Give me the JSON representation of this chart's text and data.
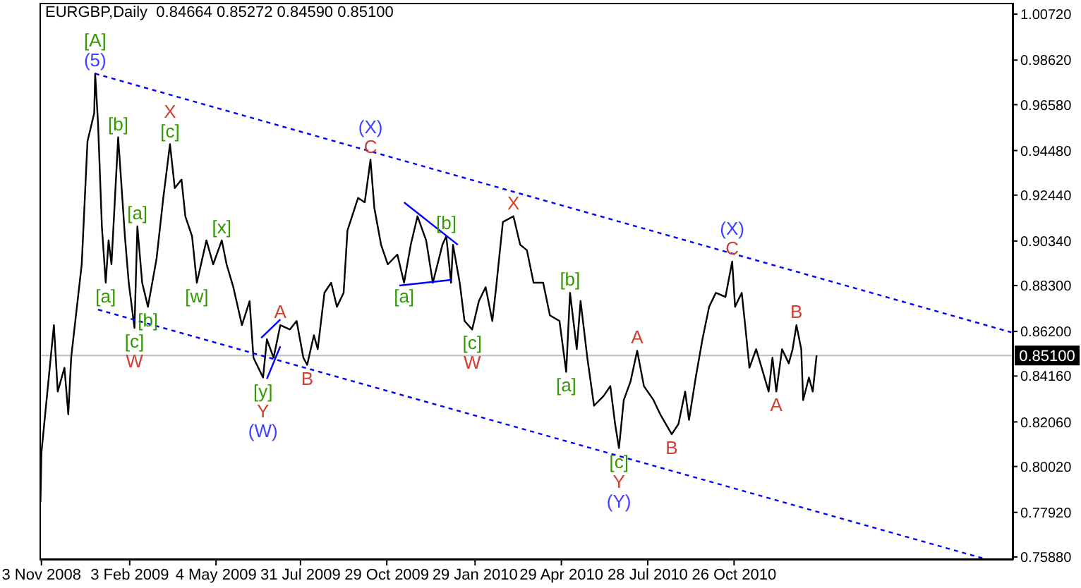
{
  "chart_data": {
    "type": "line",
    "title": "EURGBP,Daily  0.84664 0.85272 0.84590 0.85100",
    "xlim": [
      "2008-11-01",
      "2011-08-13"
    ],
    "xticks": [
      {
        "value": "2008-11-03",
        "label": "3 Nov 2008"
      },
      {
        "value": "2009-02-03",
        "label": "3 Feb 2009"
      },
      {
        "value": "2009-05-04",
        "label": "4 May 2009"
      },
      {
        "value": "2009-07-31",
        "label": "31 Jul 2009"
      },
      {
        "value": "2009-10-29",
        "label": "29 Oct 2009"
      },
      {
        "value": "2010-01-29",
        "label": "29 Jan 2010"
      },
      {
        "value": "2010-04-29",
        "label": "29 Apr 2010"
      },
      {
        "value": "2010-07-28",
        "label": "28 Jul 2010"
      },
      {
        "value": "2010-10-26",
        "label": "26 Oct 2010"
      }
    ],
    "ylim": [
      0.7575,
      1.0124
    ],
    "yticks": [
      {
        "value": 1.0072,
        "label": "1.00720"
      },
      {
        "value": 0.9862,
        "label": "0.98620"
      },
      {
        "value": 0.9658,
        "label": "0.96580"
      },
      {
        "value": 0.9448,
        "label": "0.94480"
      },
      {
        "value": 0.9244,
        "label": "0.92440"
      },
      {
        "value": 0.9034,
        "label": "0.90340"
      },
      {
        "value": 0.883,
        "label": "0.88300"
      },
      {
        "value": 0.862,
        "label": "0.86200"
      },
      {
        "value": 0.8416,
        "label": "0.84160"
      },
      {
        "value": 0.8206,
        "label": "0.82060"
      },
      {
        "value": 0.8002,
        "label": "0.80020"
      },
      {
        "value": 0.7792,
        "label": "0.77920"
      },
      {
        "value": 0.7588,
        "label": "0.75880"
      }
    ],
    "series": [
      {
        "color": "#000000",
        "x": [
          "2008-11-02",
          "2008-11-03",
          "2008-11-16",
          "2008-11-20",
          "2008-11-27",
          "2008-12-01",
          "2008-12-04",
          "2008-12-15",
          "2008-12-21",
          "2008-12-28",
          "2008-12-29",
          "2009-01-01",
          "2009-01-05",
          "2009-01-09",
          "2009-01-12",
          "2009-01-15",
          "2009-01-22",
          "2009-01-25",
          "2009-01-29",
          "2009-02-02",
          "2009-02-08",
          "2009-02-11",
          "2009-02-16",
          "2009-02-22",
          "2009-03-03",
          "2009-03-10",
          "2009-03-17",
          "2009-03-22",
          "2009-03-29",
          "2009-04-02",
          "2009-04-09",
          "2009-04-14",
          "2009-04-24",
          "2009-05-01",
          "2009-05-10",
          "2009-05-15",
          "2009-05-22",
          "2009-05-31",
          "2009-06-08",
          "2009-06-12",
          "2009-06-22",
          "2009-06-26",
          "2009-07-03",
          "2009-07-10",
          "2009-07-20",
          "2009-07-27",
          "2009-08-03",
          "2009-08-07",
          "2009-08-14",
          "2009-08-18",
          "2009-08-25",
          "2009-09-01",
          "2009-09-07",
          "2009-09-14",
          "2009-09-18",
          "2009-09-29",
          "2009-10-06",
          "2009-10-12",
          "2009-10-16",
          "2009-10-23",
          "2009-10-30",
          "2009-11-09",
          "2009-11-16",
          "2009-11-23",
          "2009-11-30",
          "2009-12-09",
          "2009-12-16",
          "2009-12-26",
          "2009-12-30",
          "2010-01-04",
          "2010-01-06",
          "2010-01-13",
          "2010-01-18",
          "2010-01-26",
          "2010-02-02",
          "2010-02-09",
          "2010-02-16",
          "2010-02-20",
          "2010-02-27",
          "2010-03-10",
          "2010-03-17",
          "2010-03-24",
          "2010-03-31",
          "2010-04-10",
          "2010-04-17",
          "2010-04-27",
          "2010-05-04",
          "2010-05-08",
          "2010-05-15",
          "2010-05-19",
          "2010-05-26",
          "2010-06-02",
          "2010-06-12",
          "2010-06-19",
          "2010-06-24",
          "2010-06-28",
          "2010-07-03",
          "2010-07-10",
          "2010-07-17",
          "2010-07-24",
          "2010-08-03",
          "2010-08-10",
          "2010-08-22",
          "2010-08-29",
          "2010-09-05",
          "2010-09-09",
          "2010-09-16",
          "2010-09-23",
          "2010-09-30",
          "2010-10-07",
          "2010-10-17",
          "2010-10-24",
          "2010-10-27",
          "2010-11-03",
          "2010-11-07",
          "2010-11-11",
          "2010-11-18",
          "2010-11-25",
          "2010-12-01",
          "2010-12-05",
          "2010-12-09",
          "2010-12-15",
          "2010-12-22",
          "2010-12-26",
          "2010-12-30",
          "2011-01-04",
          "2011-01-06",
          "2011-01-12",
          "2011-01-16",
          "2011-01-20"
        ],
        "values": [
          0.784,
          0.8066,
          0.8649,
          0.8345,
          0.8454,
          0.8241,
          0.85,
          0.8927,
          0.949,
          0.9619,
          0.98,
          0.9574,
          0.9101,
          0.8843,
          0.9037,
          0.8927,
          0.9509,
          0.9315,
          0.9056,
          0.8843,
          0.8636,
          0.9101,
          0.8843,
          0.8733,
          0.8953,
          0.9231,
          0.9477,
          0.9276,
          0.9315,
          0.9147,
          0.9056,
          0.8843,
          0.9037,
          0.8927,
          0.9037,
          0.8927,
          0.8823,
          0.8649,
          0.8759,
          0.85,
          0.8409,
          0.8584,
          0.85,
          0.8649,
          0.8629,
          0.8668,
          0.85,
          0.8467,
          0.8603,
          0.8539,
          0.8797,
          0.8843,
          0.8733,
          0.8797,
          0.9082,
          0.9231,
          0.9211,
          0.9406,
          0.9186,
          0.9017,
          0.8927,
          0.8972,
          0.8843,
          0.9017,
          0.9147,
          0.9037,
          0.8843,
          0.9017,
          0.9056,
          0.8843,
          0.9017,
          0.8843,
          0.8668,
          0.8629,
          0.8759,
          0.8823,
          0.8668,
          0.8823,
          0.9121,
          0.9147,
          0.9017,
          0.8992,
          0.8843,
          0.8843,
          0.8694,
          0.8668,
          0.8435,
          0.8797,
          0.8539,
          0.8759,
          0.85,
          0.828,
          0.8325,
          0.837,
          0.8196,
          0.8086,
          0.8306,
          0.839,
          0.8532,
          0.837,
          0.8306,
          0.8241,
          0.815,
          0.8196,
          0.8345,
          0.8215,
          0.8409,
          0.8584,
          0.8733,
          0.8797,
          0.8778,
          0.894,
          0.8733,
          0.8797,
          0.8629,
          0.8454,
          0.8539,
          0.8435,
          0.8345,
          0.85,
          0.8345,
          0.8539,
          0.8474,
          0.8539,
          0.8649,
          0.8539,
          0.8306,
          0.8409,
          0.8345,
          0.851
        ]
      },
      {
        "color": "#0000ff",
        "line_style": "dashed",
        "x": [
          "2008-12-29",
          "2011-08-11"
        ],
        "values": [
          0.98,
          0.8616
        ]
      },
      {
        "color": "#0000ff",
        "line_style": "dashed",
        "x": [
          "2009-01-01",
          "2011-07-18"
        ],
        "values": [
          0.872,
          0.7575
        ]
      },
      {
        "color": "#0000ff",
        "line_style": "solid",
        "x": [
          "2009-06-20",
          "2009-07-10"
        ],
        "values": [
          0.859,
          0.8675
        ]
      },
      {
        "color": "#0000ff",
        "line_style": "solid",
        "x": [
          "2009-06-26",
          "2009-07-10"
        ],
        "values": [
          0.8403,
          0.8552
        ]
      },
      {
        "color": "#0000ff",
        "line_style": "solid",
        "x": [
          "2009-11-16",
          "2010-01-11"
        ],
        "values": [
          0.9211,
          0.9017
        ]
      },
      {
        "color": "#0000ff",
        "line_style": "solid",
        "x": [
          "2009-11-11",
          "2010-01-04"
        ],
        "values": [
          0.883,
          0.8856
        ]
      }
    ],
    "ref_lines": [
      {
        "axis": "y",
        "value": 0.851,
        "label": "0.85100",
        "color": "#c0c0c0"
      }
    ],
    "annotations": [
      {
        "text": "[A]",
        "x": "2008-12-29",
        "y": 0.98
      },
      {
        "text": "(5)",
        "x": "2008-12-29",
        "y": 0.98
      },
      {
        "text": "[b]",
        "x": "2009-01-22",
        "y": 0.9509
      },
      {
        "text": "X",
        "x": "2009-03-17",
        "y": 0.9477
      },
      {
        "text": "[c]",
        "x": "2009-03-17",
        "y": 0.9477
      },
      {
        "text": "[a]",
        "x": "2009-02-11",
        "y": 0.9101
      },
      {
        "text": "[x]",
        "x": "2009-05-10",
        "y": 0.9037
      },
      {
        "text": "[a]",
        "x": "2009-01-09",
        "y": 0.8843
      },
      {
        "text": "[b]",
        "x": "2009-02-22",
        "y": 0.8733
      },
      {
        "text": "[w]",
        "x": "2009-04-14",
        "y": 0.8843
      },
      {
        "text": "[c]",
        "x": "2009-02-08",
        "y": 0.8636
      },
      {
        "text": "W",
        "x": "2009-02-08",
        "y": 0.8636
      },
      {
        "text": "A",
        "x": "2009-07-10",
        "y": 0.8649
      },
      {
        "text": "B",
        "x": "2009-08-07",
        "y": 0.8467
      },
      {
        "text": "[y]",
        "x": "2009-06-22",
        "y": 0.8409
      },
      {
        "text": "Y",
        "x": "2009-06-22",
        "y": 0.8409
      },
      {
        "text": "(W)",
        "x": "2009-06-22",
        "y": 0.8409
      },
      {
        "text": "(X)",
        "x": "2009-10-12",
        "y": 0.9406
      },
      {
        "text": "C",
        "x": "2009-10-12",
        "y": 0.9406
      },
      {
        "text": "[b]",
        "x": "2009-12-30",
        "y": 0.9056
      },
      {
        "text": "[a]",
        "x": "2009-11-16",
        "y": 0.8843
      },
      {
        "text": "X",
        "x": "2010-03-10",
        "y": 0.9147
      },
      {
        "text": "[c]",
        "x": "2010-01-26",
        "y": 0.8629
      },
      {
        "text": "W",
        "x": "2010-01-26",
        "y": 0.8629
      },
      {
        "text": "[b]",
        "x": "2010-05-08",
        "y": 0.8797
      },
      {
        "text": "[a]",
        "x": "2010-05-04",
        "y": 0.8435
      },
      {
        "text": "A",
        "x": "2010-07-17",
        "y": 0.8532
      },
      {
        "text": "B",
        "x": "2010-08-22",
        "y": 0.815
      },
      {
        "text": "[c]",
        "x": "2010-06-28",
        "y": 0.8086
      },
      {
        "text": "Y",
        "x": "2010-06-28",
        "y": 0.8086
      },
      {
        "text": "(Y)",
        "x": "2010-06-28",
        "y": 0.8086
      },
      {
        "text": "(X)",
        "x": "2010-10-24",
        "y": 0.894
      },
      {
        "text": "C",
        "x": "2010-10-24",
        "y": 0.894
      },
      {
        "text": "B",
        "x": "2010-12-30",
        "y": 0.8649
      },
      {
        "text": "A",
        "x": "2010-12-09",
        "y": 0.8345
      }
    ]
  }
}
